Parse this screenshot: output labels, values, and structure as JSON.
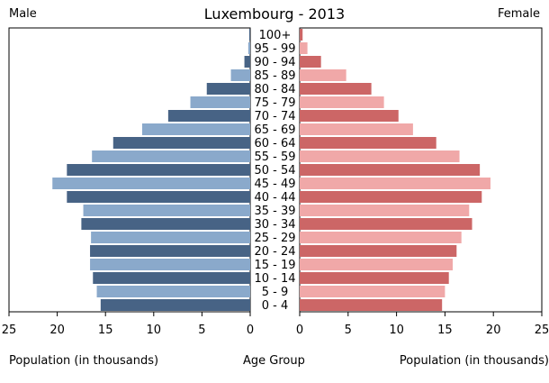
{
  "chart_data": {
    "type": "bar",
    "title": "Luxembourg - 2013",
    "left_label": "Male",
    "right_label": "Female",
    "xlabel_left": "Population (in thousands)",
    "xlabel_center": "Age Group",
    "xlabel_right": "Population (in thousands)",
    "xlim": [
      0,
      25
    ],
    "xticks": [
      0,
      5,
      10,
      15,
      20,
      25
    ],
    "categories": [
      "100+",
      "95 - 99",
      "90 - 94",
      "85 - 89",
      "80 - 84",
      "75 - 79",
      "70 - 74",
      "65 - 69",
      "60 - 64",
      "55 - 59",
      "50 - 54",
      "45 - 49",
      "40 - 44",
      "35 - 39",
      "30 - 34",
      "25 - 29",
      "20 - 24",
      "15 - 19",
      "10 - 14",
      "5 - 9",
      "0 - 4"
    ],
    "series": [
      {
        "name": "Male",
        "color_dark": "#476385",
        "color_light": "#8aa9cb",
        "values": [
          0.1,
          0.2,
          0.6,
          2.0,
          4.5,
          6.2,
          8.5,
          11.2,
          14.2,
          16.4,
          19.0,
          20.5,
          19.0,
          17.3,
          17.5,
          16.5,
          16.6,
          16.6,
          16.3,
          15.9,
          15.5
        ]
      },
      {
        "name": "Female",
        "color_dark": "#cc6666",
        "color_light": "#f0a8a8",
        "values": [
          0.3,
          0.8,
          2.2,
          4.8,
          7.4,
          8.7,
          10.2,
          11.7,
          14.1,
          16.5,
          18.6,
          19.7,
          18.8,
          17.5,
          17.8,
          16.7,
          16.2,
          15.8,
          15.4,
          15.0,
          14.7
        ]
      }
    ],
    "grid": false,
    "legend": "none"
  }
}
